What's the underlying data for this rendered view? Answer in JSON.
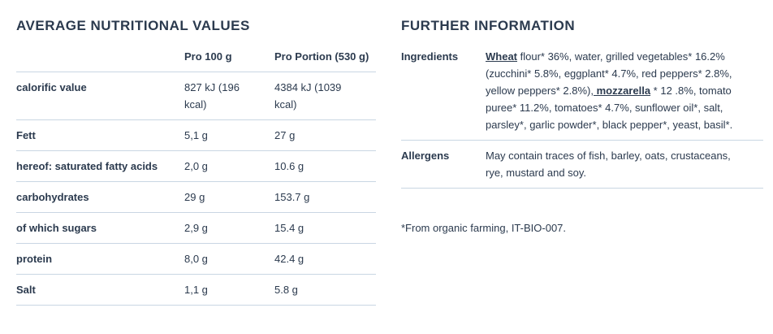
{
  "nutrition": {
    "title": "AVERAGE NUTRITIONAL VALUES",
    "columns": [
      "Pro 100 g",
      "Pro Portion (530 g)"
    ],
    "rows": [
      [
        "calorific value",
        "827 kJ (196 kcal)",
        "4384 kJ (1039 kcal)"
      ],
      [
        "Fett",
        "5,1 g",
        "27 g"
      ],
      [
        "hereof: saturated fatty acids",
        "2,0 g",
        "10.6 g"
      ],
      [
        "carbohydrates",
        "29 g",
        "153.7 g"
      ],
      [
        "of which sugars",
        "2,9 g",
        "15.4 g"
      ],
      [
        "protein",
        "8,0 g",
        "42.4 g"
      ],
      [
        "Salt",
        "1,1 g",
        "5.8 g"
      ]
    ]
  },
  "further": {
    "title": "FURTHER INFORMATION",
    "ingredients": {
      "label": "Ingredients",
      "parts": [
        "Wheat",
        " flour* 36%, water, grilled vegetables* 16.2% (zucchini* 5.8%, eggplant* 4.7%, red peppers* 2.8%, yellow peppers* 2.8%),",
        " mozzarella",
        " * 12 .8%, tomato puree* 11.2%, tomatoes* 4.7%, sunflower oil*, salt, parsley*, garlic powder*, black pepper*, yeast, basil*."
      ]
    },
    "allergens": {
      "label": "Allergens",
      "text": "May contain traces of fish, barley, oats, crustaceans, rye, mustard and soy."
    },
    "footnote": "*From organic farming, IT-BIO-007."
  }
}
